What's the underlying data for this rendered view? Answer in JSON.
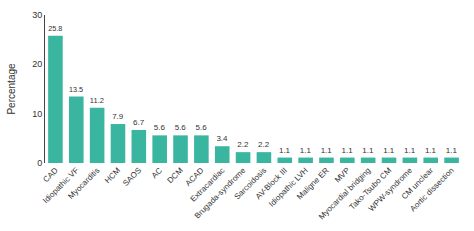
{
  "chart_data": {
    "type": "bar",
    "categories": [
      "CAD",
      "Idiopathic VF",
      "Myocarditis",
      "HCM",
      "SAOS",
      "AC",
      "DCM",
      "ACAD",
      "Extracardiac",
      "Brugada-syndrome",
      "Sarcoidosis",
      "AV-Block III",
      "Idiopathic LVH",
      "Maligne ER",
      "MVP",
      "Myocardial bridging",
      "Tako-Tsubo CM",
      "WPW-syndrome",
      "CM unclear",
      "Aortic dissection"
    ],
    "values": [
      25.8,
      13.5,
      11.2,
      7.9,
      6.7,
      5.6,
      5.6,
      5.6,
      3.4,
      2.2,
      2.2,
      1.1,
      1.1,
      1.1,
      1.1,
      1.1,
      1.1,
      1.1,
      1.1,
      1.1
    ],
    "color": "#3ab5a0",
    "ylabel": "Percentage",
    "ylim": [
      0,
      30
    ],
    "yticks": [
      0,
      10,
      20,
      30
    ],
    "data_labels": true,
    "grid": false
  }
}
